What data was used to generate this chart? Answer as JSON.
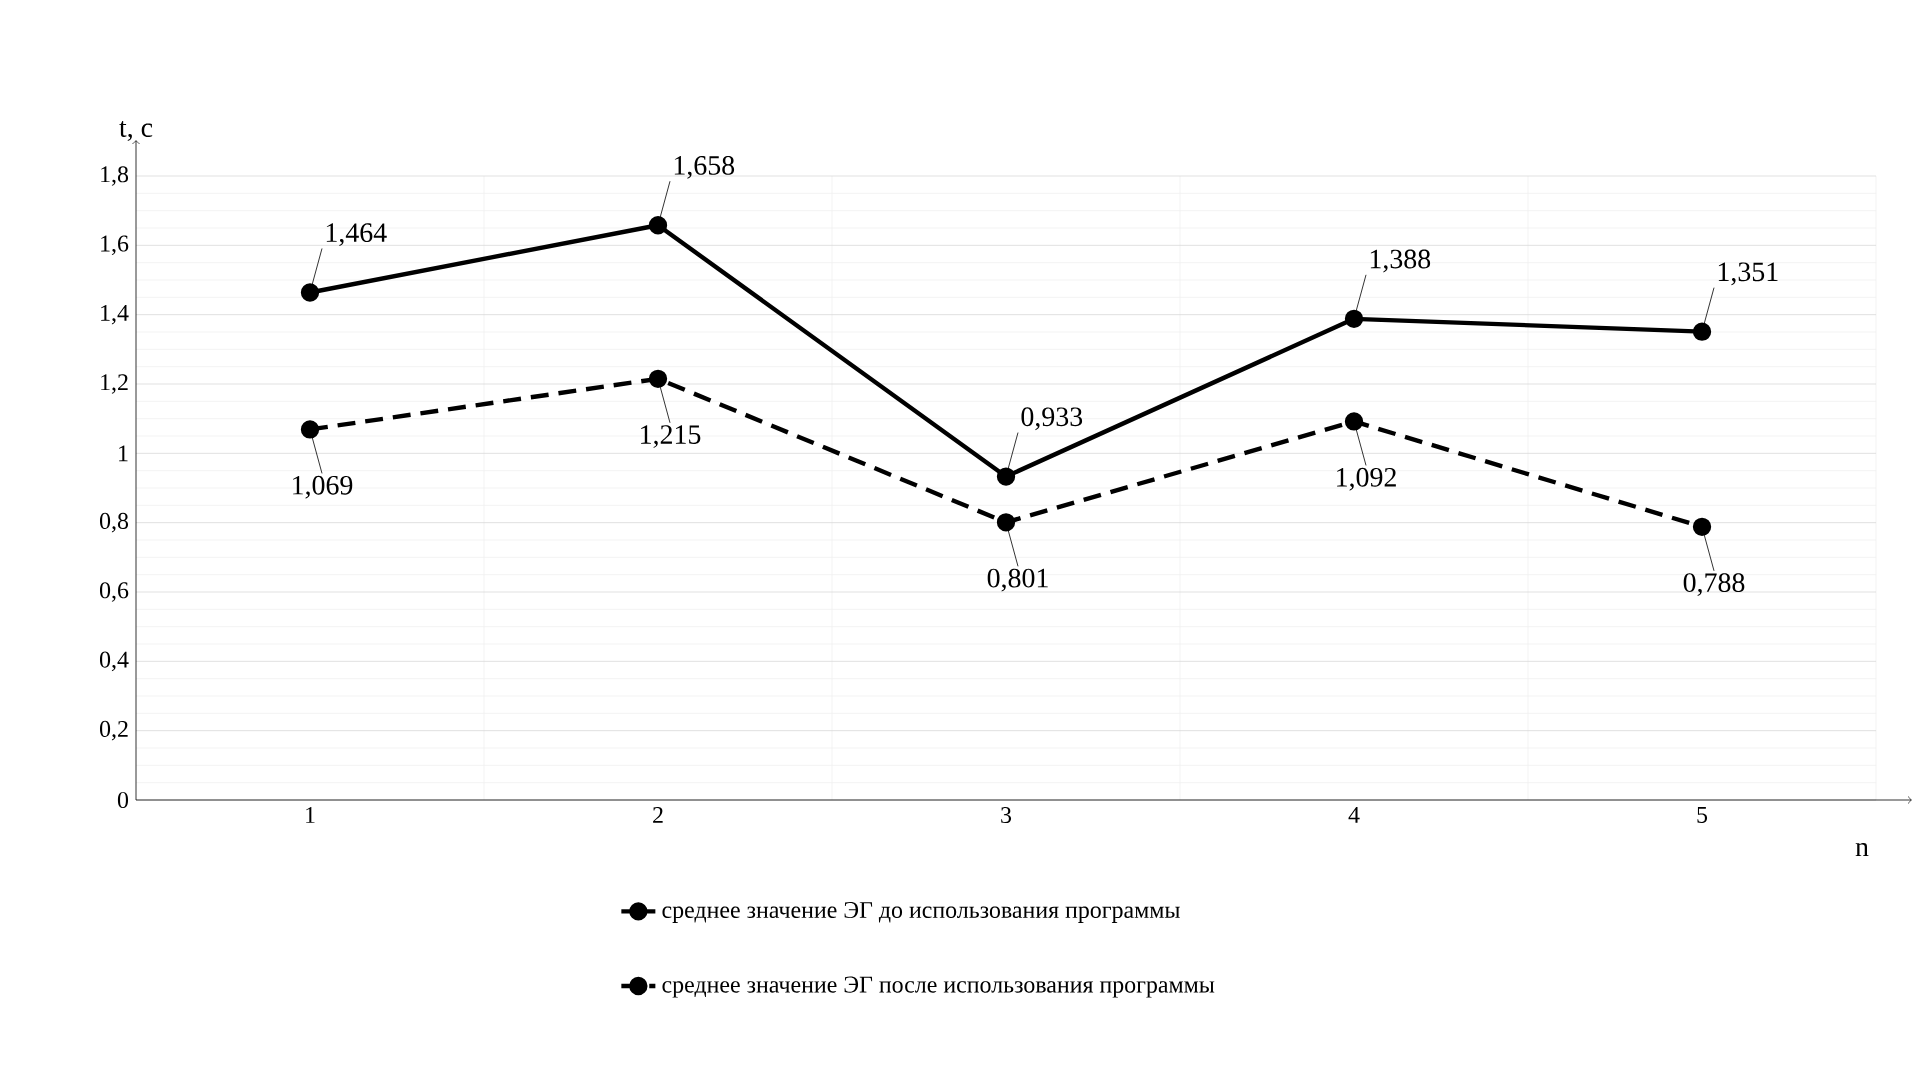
{
  "chart_data": {
    "type": "line",
    "xlabel": "n",
    "ylabel": "t, c",
    "categories": [
      "1",
      "2",
      "3",
      "4",
      "5"
    ],
    "series": [
      {
        "name": "среднее значение ЭГ до  использования программы",
        "color": "#000000",
        "line_style": "solid",
        "values": [
          1.464,
          1.658,
          0.933,
          1.388,
          1.351
        ],
        "value_labels": [
          "1,464",
          "1,658",
          "0,933",
          "1,388",
          "1,351"
        ]
      },
      {
        "name": "среднее значение ЭГ после  использования программы",
        "color": "#000000",
        "line_style": "dashed",
        "values": [
          1.069,
          1.215,
          0.801,
          1.092,
          0.788
        ],
        "value_labels": [
          "1,069",
          "1,215",
          "0,801",
          "1,092",
          "0,788"
        ]
      }
    ],
    "ylim": [
      0,
      1.8
    ],
    "yticks": [
      0,
      {
        "value": 0.2,
        "label": "0,2"
      },
      {
        "value": 0.4,
        "label": "0,4"
      },
      {
        "value": 0.6,
        "label": "0,6"
      },
      {
        "value": 0.8,
        "label": "0,8"
      },
      1,
      {
        "value": 1.2,
        "label": "1,2"
      },
      {
        "value": 1.4,
        "label": "1,4"
      },
      {
        "value": 1.6,
        "label": "1,6"
      },
      {
        "value": 1.8,
        "label": "1,8"
      }
    ],
    "grid": true,
    "marker": "circle",
    "legend": "bottom"
  }
}
